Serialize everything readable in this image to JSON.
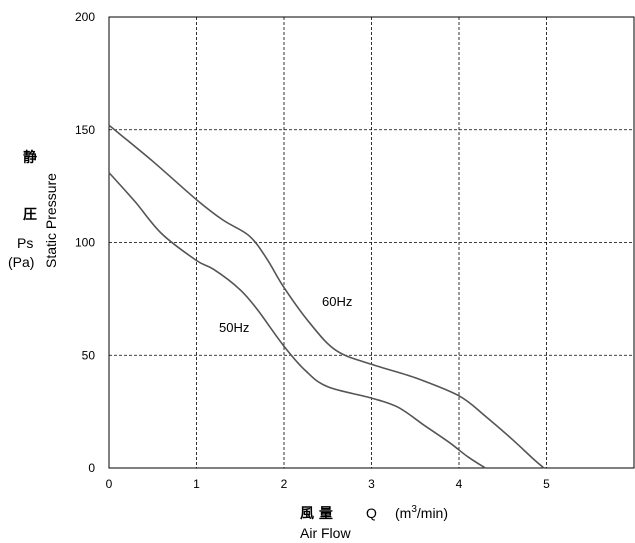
{
  "chart_data": {
    "type": "line",
    "xlabel_cjk": "風 量",
    "xlabel_symbol": "Q",
    "xlabel_unit_pre": "(m",
    "xlabel_unit_sup": "3",
    "xlabel_unit_post": "/min)",
    "xlabel_en": "Air Flow",
    "ylabel_cjk_1": "静",
    "ylabel_cjk_2": "圧",
    "ylabel_symbol": "Ps",
    "ylabel_unit": "(Pa)",
    "ylabel_en": "Static Pressure",
    "xlim": [
      0,
      6
    ],
    "ylim": [
      0,
      200
    ],
    "x_ticks": [
      "0",
      "1",
      "2",
      "3",
      "4",
      "5"
    ],
    "y_ticks": [
      "0",
      "50",
      "100",
      "150",
      "200"
    ],
    "grid": true,
    "series": [
      {
        "name": "60Hz",
        "x": [
          0,
          0.5,
          1.0,
          1.3,
          1.6,
          1.8,
          2.0,
          2.3,
          2.6,
          3.0,
          3.5,
          4.0,
          4.3,
          4.6,
          4.85,
          4.97
        ],
        "y": [
          152,
          136,
          119,
          110,
          103,
          93,
          80,
          64,
          52,
          46,
          40,
          32,
          23,
          13,
          4,
          0
        ]
      },
      {
        "name": "50Hz",
        "x": [
          0,
          0.3,
          0.6,
          1.0,
          1.2,
          1.5,
          1.7,
          2.0,
          2.25,
          2.5,
          3.0,
          3.3,
          3.6,
          3.9,
          4.1,
          4.3
        ],
        "y": [
          131,
          118,
          104,
          92,
          88,
          79,
          70,
          54,
          43,
          36,
          31,
          27,
          19,
          11,
          5,
          0
        ]
      }
    ]
  }
}
